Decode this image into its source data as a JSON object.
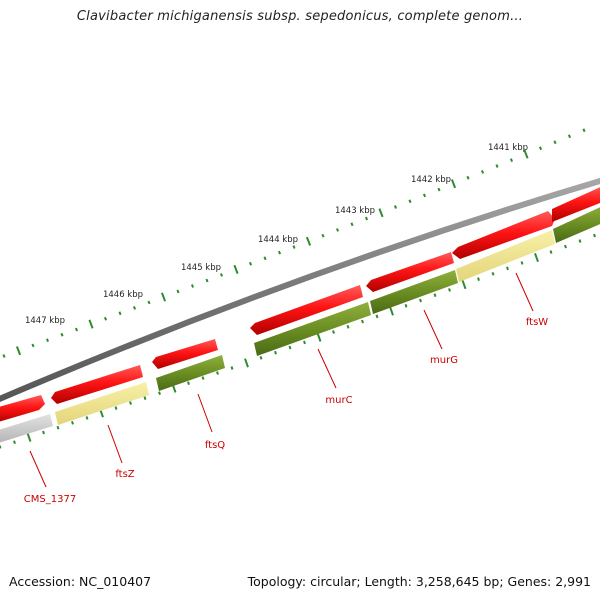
{
  "title": "Clavibacter michiganensis subsp. sepedonicus, complete genom...",
  "footer": {
    "accession": "Accession: NC_010407",
    "summary": "Topology: circular; Length: 3,258,645 bp; Genes: 2,991"
  },
  "colors": {
    "backbone": "#7b7b7b",
    "forward_gene": "#ff1a1a",
    "reverse_gene_olive": "#6b8e23",
    "reverse_gene_pale": "#efe58f",
    "reverse_gene_grey": "#c8c8c8",
    "tick": "#2e8b2e",
    "gene_label": "#cc0000",
    "scale_label": "#222222"
  },
  "scale": {
    "labels": [
      "1441 kbp",
      "1442 kbp",
      "1443 kbp",
      "1444 kbp",
      "1445 kbp",
      "1446 kbp",
      "1447 kbp"
    ]
  },
  "genes": [
    {
      "label": "CMS_1377"
    },
    {
      "label": "ftsZ"
    },
    {
      "label": "ftsQ"
    },
    {
      "label": "murC"
    },
    {
      "label": "murG"
    },
    {
      "label": "ftsW"
    }
  ]
}
